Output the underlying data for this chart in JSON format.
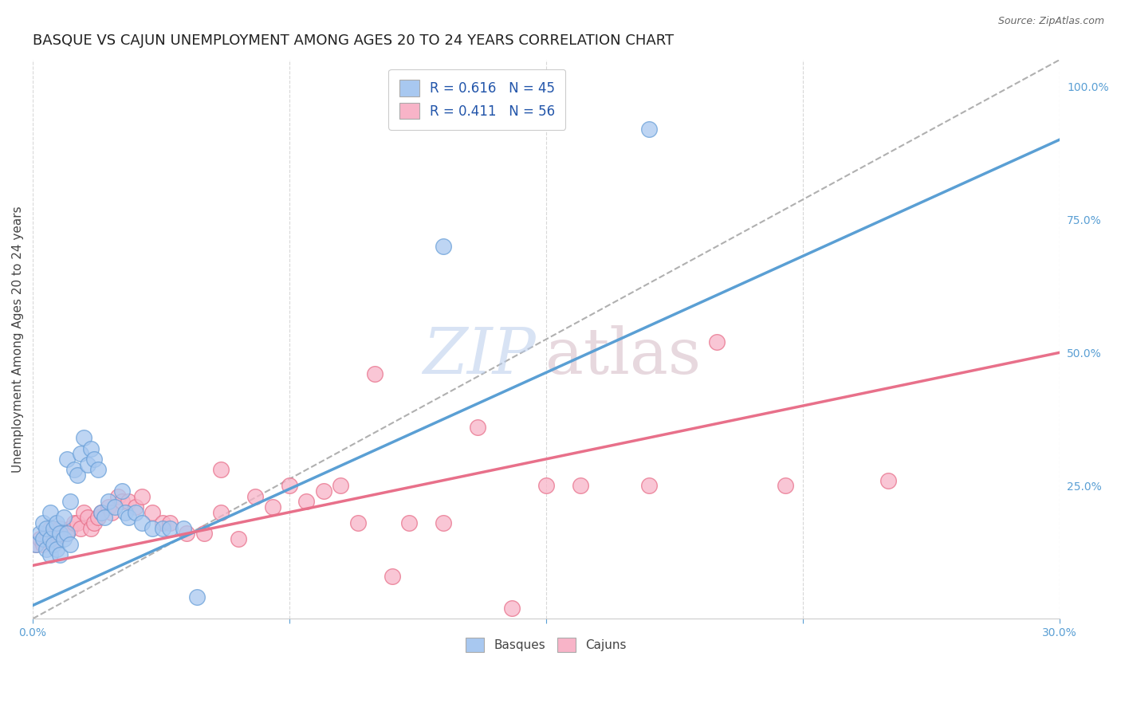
{
  "title": "BASQUE VS CAJUN UNEMPLOYMENT AMONG AGES 20 TO 24 YEARS CORRELATION CHART",
  "source": "Source: ZipAtlas.com",
  "ylabel": "Unemployment Among Ages 20 to 24 years",
  "xlim": [
    0.0,
    0.3
  ],
  "ylim": [
    0.0,
    1.05
  ],
  "x_tick_positions": [
    0.0,
    0.075,
    0.15,
    0.225,
    0.3
  ],
  "x_tick_labels": [
    "0.0%",
    "",
    "",
    "",
    "30.0%"
  ],
  "y_ticks_right": [
    0.25,
    0.5,
    0.75,
    1.0
  ],
  "y_tick_labels_right": [
    "25.0%",
    "50.0%",
    "75.0%",
    "100.0%"
  ],
  "basque_R": 0.616,
  "basque_N": 45,
  "cajun_R": 0.411,
  "cajun_N": 56,
  "basque_color": "#a8c8f0",
  "cajun_color": "#f8b4c8",
  "basque_edge_color": "#6aA0d8",
  "cajun_edge_color": "#e8708a",
  "basque_line_color": "#5a9fd4",
  "cajun_line_color": "#e8708a",
  "dashed_line_color": "#b0b0b0",
  "grid_color": "#d8d8d8",
  "background_color": "#ffffff",
  "tick_color": "#5a9fd4",
  "title_fontsize": 13,
  "axis_label_fontsize": 11,
  "tick_fontsize": 10,
  "legend_fontsize": 12,
  "basque_line_x0": 0.0,
  "basque_line_y0": 0.025,
  "basque_line_x1": 0.3,
  "basque_line_y1": 0.9,
  "cajun_line_x0": 0.0,
  "cajun_line_y0": 0.1,
  "cajun_line_x1": 0.3,
  "cajun_line_y1": 0.5,
  "basque_scatter_x": [
    0.001,
    0.002,
    0.003,
    0.003,
    0.004,
    0.004,
    0.005,
    0.005,
    0.005,
    0.006,
    0.006,
    0.007,
    0.007,
    0.008,
    0.008,
    0.009,
    0.009,
    0.01,
    0.01,
    0.011,
    0.011,
    0.012,
    0.013,
    0.014,
    0.015,
    0.016,
    0.017,
    0.018,
    0.019,
    0.02,
    0.021,
    0.022,
    0.024,
    0.026,
    0.027,
    0.028,
    0.03,
    0.032,
    0.035,
    0.038,
    0.04,
    0.044,
    0.048,
    0.18,
    0.12
  ],
  "basque_scatter_y": [
    0.14,
    0.16,
    0.15,
    0.18,
    0.13,
    0.17,
    0.12,
    0.15,
    0.2,
    0.14,
    0.17,
    0.13,
    0.18,
    0.12,
    0.16,
    0.15,
    0.19,
    0.16,
    0.3,
    0.14,
    0.22,
    0.28,
    0.27,
    0.31,
    0.34,
    0.29,
    0.32,
    0.3,
    0.28,
    0.2,
    0.19,
    0.22,
    0.21,
    0.24,
    0.2,
    0.19,
    0.2,
    0.18,
    0.17,
    0.17,
    0.17,
    0.17,
    0.04,
    0.92,
    0.7
  ],
  "cajun_scatter_x": [
    0.001,
    0.002,
    0.003,
    0.004,
    0.005,
    0.005,
    0.006,
    0.007,
    0.007,
    0.008,
    0.009,
    0.01,
    0.011,
    0.012,
    0.013,
    0.014,
    0.015,
    0.016,
    0.017,
    0.018,
    0.019,
    0.02,
    0.022,
    0.023,
    0.025,
    0.026,
    0.028,
    0.03,
    0.032,
    0.035,
    0.038,
    0.04,
    0.045,
    0.05,
    0.055,
    0.06,
    0.07,
    0.08,
    0.09,
    0.1,
    0.11,
    0.12,
    0.13,
    0.15,
    0.16,
    0.18,
    0.2,
    0.055,
    0.065,
    0.075,
    0.085,
    0.095,
    0.105,
    0.14,
    0.22,
    0.25
  ],
  "cajun_scatter_y": [
    0.14,
    0.15,
    0.14,
    0.15,
    0.15,
    0.17,
    0.16,
    0.15,
    0.16,
    0.17,
    0.16,
    0.16,
    0.17,
    0.18,
    0.18,
    0.17,
    0.2,
    0.19,
    0.17,
    0.18,
    0.19,
    0.2,
    0.21,
    0.2,
    0.23,
    0.22,
    0.22,
    0.21,
    0.23,
    0.2,
    0.18,
    0.18,
    0.16,
    0.16,
    0.2,
    0.15,
    0.21,
    0.22,
    0.25,
    0.46,
    0.18,
    0.18,
    0.36,
    0.25,
    0.25,
    0.25,
    0.52,
    0.28,
    0.23,
    0.25,
    0.24,
    0.18,
    0.08,
    0.02,
    0.25,
    0.26
  ]
}
